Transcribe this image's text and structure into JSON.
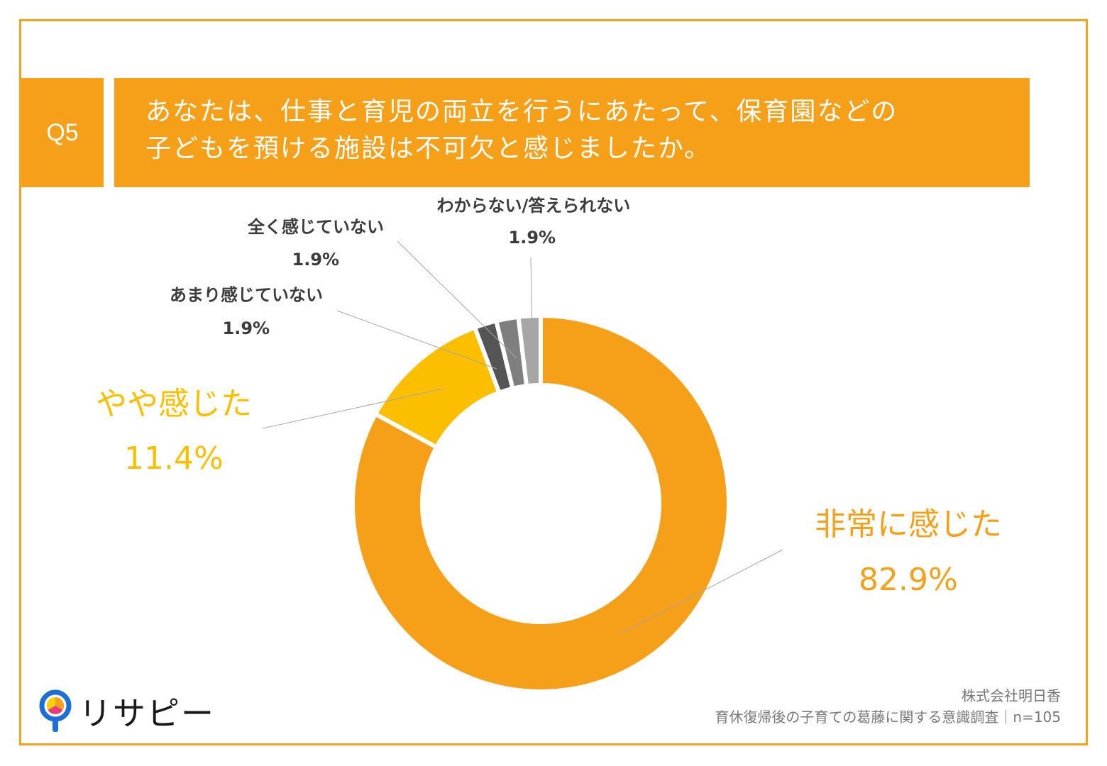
{
  "header": {
    "question_id": "Q5",
    "title_line1": "あなたは、仕事と育児の両立を行うにあたって、保育園などの",
    "title_line2": "子どもを預ける施設は不可欠と感じましたか。"
  },
  "chart_data": {
    "type": "donut",
    "title": "あなたは、仕事と育児の両立を行うにあたって、保育園などの子どもを預ける施設は不可欠と感じましたか。",
    "unit": "%",
    "slices": [
      {
        "label": "非常に感じた",
        "value": 82.9,
        "value_label": "82.9%",
        "color": "#f6a01a"
      },
      {
        "label": "やや感じた",
        "value": 11.4,
        "value_label": "11.4%",
        "color": "#fcbf00"
      },
      {
        "label": "あまり感じていない",
        "value": 1.9,
        "value_label": "1.9%",
        "color": "#555555"
      },
      {
        "label": "全く感じていない",
        "value": 1.9,
        "value_label": "1.9%",
        "color": "#7f7f7f"
      },
      {
        "label": "わからない/答えられない",
        "value": 1.9,
        "value_label": "1.9%",
        "color": "#a6a6a6"
      }
    ]
  },
  "footer": {
    "logo_text": "リサピー",
    "source_line1": "株式会社明日香",
    "source_line2": "育休復帰後の子育ての葛藤に関する意識調査｜n=105"
  },
  "colors": {
    "accent": "#f6a01a",
    "secondary": "#fcbf00",
    "border": "#f6a31b"
  }
}
